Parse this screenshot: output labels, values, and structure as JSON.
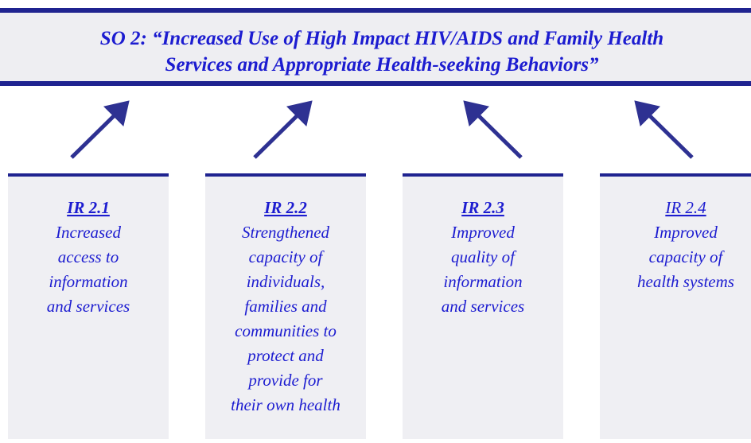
{
  "title": [
    "SO 2:  “Increased Use of High Impact HIV/AIDS and Family Health",
    "Services and Appropriate Health-seeking Behaviors”"
  ],
  "boxes": [
    {
      "label": "IR 2.1",
      "lines": [
        "Increased",
        "access to",
        "information",
        "and services"
      ]
    },
    {
      "label": "IR 2.2",
      "lines": [
        "Strengthened",
        "capacity of",
        "individuals,",
        "families and",
        "communities to",
        "protect and",
        "provide for",
        "their own health"
      ]
    },
    {
      "label": "IR 2.3",
      "lines": [
        "Improved",
        "quality of",
        "information",
        "and services"
      ]
    },
    {
      "label": "IR 2.4",
      "lines": [
        "Improved",
        "capacity of",
        "health systems"
      ]
    }
  ]
}
